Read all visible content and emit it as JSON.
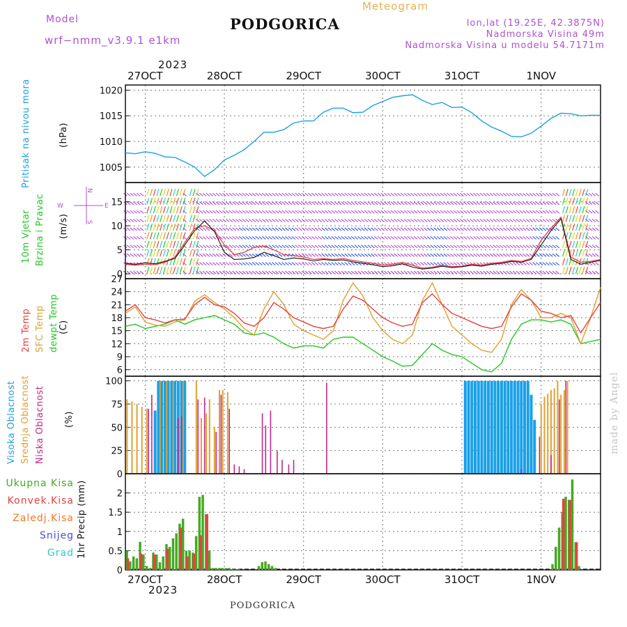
{
  "header": {
    "model_label": "Model",
    "model_name": "wrf−nmm_v3.9.1 e1km",
    "title": "PODGORICA",
    "meteogram_label": "Meteogram",
    "lonlat": "lon,lat (19.25E, 42.3875N)",
    "elevation": "Nadmorska Visina 49m",
    "model_elevation": "Nadmorska Visina u modelu 54.7171m",
    "year": "2023",
    "bottom_title": "PODGORICA",
    "watermark": "made by Angel"
  },
  "colors": {
    "purple": "#b050d0",
    "pressure": "#1aa0e8",
    "temp2m": "#e84040",
    "sfc": "#e0a030",
    "dew": "#22c822",
    "high": "#1aa0e8",
    "mid": "#e0a030",
    "low": "#c0288c",
    "rain": "#44aa22",
    "conv": "#e84040",
    "frz": "#f07828",
    "snow": "#4848e0",
    "hail": "#30c8c8",
    "orange": "#e8b050"
  },
  "chart_data": [
    {
      "type": "line",
      "id": "pressure",
      "ylabel_series": "Pritisak na nivou mora",
      "ylabel_unit": "(hPa)",
      "ylim": [
        1002,
        1021
      ],
      "yticks": [
        "1020",
        "1015",
        "1010",
        "1005"
      ],
      "ytick_values": [
        1020,
        1015,
        1010,
        1005
      ],
      "xticks": [
        "27OCT",
        "28OCT",
        "29OCT",
        "30OCT",
        "31OCT",
        "1NOV"
      ],
      "x_hours": [
        0,
        3,
        6,
        9,
        12,
        15,
        18,
        21,
        24,
        27,
        30,
        33,
        36,
        39,
        42,
        45,
        48,
        51,
        54,
        57,
        60,
        63,
        66,
        69,
        72,
        75,
        78,
        81,
        84,
        87,
        90,
        93,
        96,
        99,
        102,
        105,
        108,
        111,
        114,
        117,
        120,
        123,
        126,
        129,
        132,
        135,
        138,
        141,
        144
      ],
      "series": [
        {
          "values": [
            1007.8,
            1007.6,
            1008.0,
            1007.7,
            1007.0,
            1006.9,
            1006.0,
            1005.0,
            1003.2,
            1004.5,
            1006.4,
            1007.3,
            1008.4,
            1010.0,
            1011.8,
            1011.8,
            1012.3,
            1013.6,
            1014.0,
            1014.0,
            1015.7,
            1016.5,
            1016.5,
            1015.6,
            1015.7,
            1017.0,
            1017.8,
            1018.6,
            1018.9,
            1019.1,
            1018.0,
            1017.2,
            1017.6,
            1016.6,
            1016.7,
            1015.6,
            1014.0,
            1012.8,
            1012.0,
            1011.0,
            1010.9,
            1011.6,
            1013.0,
            1014.5,
            1015.5,
            1015.4,
            1015.0,
            1015.1,
            1015.1
          ]
        }
      ]
    },
    {
      "type": "line",
      "id": "wind",
      "ylabel_series_1": "10m Vjetar",
      "ylabel_series_2": "Brzina i Pravac",
      "ylabel_unit": "(m/s)",
      "compass": [
        "N",
        "W",
        "E",
        "S"
      ],
      "ylim": [
        -1,
        19
      ],
      "yticks": [
        "15",
        "10",
        "5",
        "0"
      ],
      "ytick_values": [
        15,
        10,
        5,
        0
      ],
      "x_hours": [
        0,
        3,
        6,
        9,
        12,
        15,
        18,
        21,
        24,
        27,
        30,
        33,
        36,
        39,
        42,
        45,
        48,
        51,
        54,
        57,
        60,
        63,
        66,
        69,
        72,
        75,
        78,
        81,
        84,
        87,
        90,
        93,
        96,
        99,
        102,
        105,
        108,
        111,
        114,
        117,
        120,
        123,
        126,
        129,
        132,
        135,
        138,
        141,
        144
      ],
      "series": [
        {
          "name": "speed",
          "values": [
            2.2,
            2.0,
            2.3,
            2.1,
            2.6,
            3.2,
            6.0,
            9.0,
            11.0,
            8.8,
            4.5,
            3.0,
            3.1,
            3.4,
            4.5,
            3.8,
            3.0,
            3.3,
            3.1,
            2.7,
            3.0,
            2.8,
            2.9,
            2.5,
            2.2,
            1.9,
            1.5,
            1.7,
            2.1,
            1.4,
            1.0,
            1.2,
            1.6,
            1.3,
            1.5,
            1.8,
            1.6,
            2.0,
            2.2,
            2.6,
            2.4,
            3.0,
            6.0,
            9.0,
            11.5,
            3.0,
            2.0,
            2.4,
            2.8
          ]
        },
        {
          "name": "gust",
          "values": [
            2.0,
            1.8,
            2.0,
            1.9,
            2.4,
            3.5,
            6.5,
            9.5,
            10.0,
            9.0,
            6.0,
            4.0,
            4.5,
            5.5,
            5.8,
            5.0,
            4.0,
            3.8,
            3.5,
            3.0,
            3.2,
            3.0,
            3.2,
            2.8,
            2.5,
            2.2,
            1.8,
            2.0,
            2.4,
            1.8,
            1.2,
            1.4,
            1.8,
            1.5,
            1.6,
            2.0,
            1.8,
            2.2,
            2.4,
            2.8,
            2.6,
            3.2,
            7.0,
            9.5,
            11.8,
            3.5,
            2.4,
            2.6,
            3.0
          ]
        }
      ]
    },
    {
      "type": "line",
      "id": "temperature",
      "ylabel_series_1": "2m Temp",
      "ylabel_series_2": "SFC Temp",
      "ylabel_series_3": "dewpt Temp",
      "ylabel_unit": "(C)",
      "ylim": [
        4.5,
        27
      ],
      "yticks": [
        "27",
        "24",
        "21",
        "18",
        "15",
        "12",
        "9",
        "6"
      ],
      "ytick_values": [
        27,
        24,
        21,
        18,
        15,
        12,
        9,
        6
      ],
      "x_hours": [
        0,
        3,
        6,
        9,
        12,
        15,
        18,
        21,
        24,
        27,
        30,
        33,
        36,
        39,
        42,
        45,
        48,
        51,
        54,
        57,
        60,
        63,
        66,
        69,
        72,
        75,
        78,
        81,
        84,
        87,
        90,
        93,
        96,
        99,
        102,
        105,
        108,
        111,
        114,
        117,
        120,
        123,
        126,
        129,
        132,
        135,
        138,
        141,
        144
      ],
      "series": [
        {
          "name": "2m Temp",
          "values": [
            19.5,
            21.0,
            18.0,
            17.5,
            16.8,
            17.5,
            17.7,
            21.0,
            22.7,
            21.0,
            20.5,
            19.0,
            16.8,
            16.0,
            18.0,
            21.5,
            20.0,
            18.0,
            17.0,
            16.0,
            15.5,
            16.0,
            20.0,
            23.0,
            22.0,
            20.0,
            18.0,
            16.8,
            16.0,
            16.5,
            21.5,
            23.5,
            21.0,
            19.0,
            18.0,
            17.0,
            16.0,
            15.5,
            16.0,
            20.5,
            23.5,
            22.0,
            19.5,
            19.0,
            18.0,
            18.5,
            14.5,
            18.0,
            21.5
          ]
        },
        {
          "name": "SFC Temp",
          "values": [
            19.0,
            20.5,
            17.0,
            16.3,
            16.0,
            17.0,
            17.5,
            21.8,
            23.3,
            21.5,
            20.0,
            18.0,
            15.5,
            14.0,
            20.0,
            24.0,
            21.0,
            16.5,
            15.0,
            14.0,
            13.0,
            15.0,
            22.0,
            26.0,
            23.0,
            18.0,
            15.0,
            13.0,
            12.0,
            14.0,
            22.0,
            26.0,
            21.0,
            16.0,
            14.0,
            12.0,
            10.5,
            10.0,
            13.0,
            21.0,
            24.5,
            22.0,
            18.0,
            18.0,
            19.0,
            18.0,
            12.0,
            18.0,
            25.0
          ]
        },
        {
          "name": "dewpt Temp",
          "values": [
            16.0,
            16.5,
            15.5,
            16.0,
            16.5,
            17.5,
            16.5,
            17.5,
            18.0,
            18.5,
            17.5,
            16.5,
            14.5,
            14.0,
            14.5,
            13.5,
            12.0,
            11.0,
            11.5,
            11.5,
            11.0,
            13.0,
            13.5,
            13.5,
            12.0,
            10.5,
            9.0,
            8.0,
            6.8,
            7.0,
            9.5,
            12.0,
            10.5,
            9.5,
            9.0,
            7.5,
            6.0,
            5.5,
            7.5,
            13.0,
            16.5,
            17.5,
            17.5,
            17.0,
            17.5,
            16.5,
            12.0,
            12.5,
            13.0
          ]
        }
      ]
    },
    {
      "type": "bar",
      "id": "clouds",
      "ylabel_series_1": "Visoka Oblacnost",
      "ylabel_series_2": "Srednja Oblacnost",
      "ylabel_series_3": "Niska Oblacnost",
      "ylabel_unit": "(%)",
      "ylim": [
        0,
        105
      ],
      "yticks": [
        "100",
        "75",
        "50",
        "25",
        "0"
      ],
      "ytick_values": [
        100,
        75,
        50,
        25,
        0
      ],
      "series": [
        {
          "name": "Visoka",
          "x_hours": [
            9.0,
            10.0,
            11.0,
            12.0,
            13.0,
            14.0,
            15.0,
            16.0,
            17.0,
            18.0,
            103.0,
            104.0,
            105.0,
            106.0,
            107.0,
            108.0,
            109.0,
            110.0,
            111.0,
            112.0,
            113.0,
            114.0,
            115.0,
            116.0,
            117.0,
            118.0,
            119.0,
            120.0,
            121.0,
            122.0,
            123.0,
            124.0
          ],
          "values": [
            68,
            100,
            100,
            100,
            100,
            100,
            100,
            100,
            100,
            100,
            100,
            100,
            100,
            100,
            100,
            100,
            100,
            100,
            100,
            100,
            100,
            100,
            100,
            100,
            100,
            100,
            100,
            100,
            100,
            100,
            85,
            58
          ]
        },
        {
          "name": "Srednja",
          "x_hours": [
            0.5,
            2.0,
            3.5,
            5.0,
            6.5,
            10.5,
            12.5,
            14.5,
            17.5,
            21.5,
            23.0,
            24.5,
            25.5,
            27.0,
            28.5,
            29.5,
            31.0,
            126.0,
            127.0,
            128.0,
            129.0,
            130.0,
            131.0,
            132.0,
            133.0,
            134.0
          ],
          "values": [
            80,
            78,
            75,
            72,
            70,
            100,
            100,
            100,
            100,
            100,
            60,
            65,
            80,
            50,
            90,
            90,
            88,
            75,
            83,
            86,
            90,
            92,
            100,
            85,
            90,
            100
          ]
        },
        {
          "name": "Niska",
          "x_hours": [
            7.0,
            8.0,
            16.0,
            17.0,
            22.0,
            24.0,
            27.5,
            29.0,
            31.5,
            33.0,
            34.5,
            36.0,
            41.5,
            42.5,
            44.0,
            46.0,
            47.5,
            49.5,
            51.0,
            61.0,
            120.0,
            125.5,
            129.0,
            131.5,
            133.5
          ],
          "values": [
            70,
            85,
            60,
            62,
            80,
            82,
            45,
            85,
            70,
            10,
            8,
            5,
            65,
            52,
            68,
            25,
            15,
            10,
            15,
            98,
            5,
            40,
            20,
            80,
            100
          ]
        }
      ]
    },
    {
      "type": "bar",
      "id": "precip",
      "legend": [
        "Ukupna Kisa",
        "Konvek.Kisa",
        "Zaledj.Kisa",
        "Snijeg",
        "Grad"
      ],
      "ylabel_unit": "1hr Precip (mm)",
      "ylim": [
        0,
        2.5
      ],
      "yticks": [
        "2",
        "1.5",
        "1",
        "0.5",
        "0"
      ],
      "ytick_values": [
        2,
        1.5,
        1,
        0.5,
        0
      ],
      "xticks": [
        "27OCT",
        "28OCT",
        "29OCT",
        "30OCT",
        "31OCT",
        "1NOV"
      ],
      "year": "2023",
      "series": [
        {
          "name": "Ukupna Kisa",
          "x_hours": [
            0.5,
            1.5,
            2.5,
            3.5,
            4.5,
            5.5,
            6.5,
            7.5,
            8.5,
            9.5,
            10.5,
            11.5,
            12.5,
            13.5,
            14.5,
            15.5,
            16.5,
            17.5,
            18.5,
            19.5,
            20.5,
            21.5,
            22.5,
            23.5,
            24.5,
            25.5,
            26.5,
            27.5,
            28.5,
            29.5,
            30.5,
            31.5,
            32.5,
            33.5,
            34.5,
            40.5,
            41.5,
            42.5,
            43.5,
            44.5,
            45.5,
            129.5,
            130.5,
            131.5,
            132.5,
            133.5,
            134.5,
            135.5,
            136.5,
            137.5
          ],
          "values": [
            0.5,
            0.22,
            0.35,
            0.3,
            0.73,
            0.4,
            0.1,
            0.05,
            0.45,
            0.4,
            0.2,
            0.35,
            0.67,
            0.6,
            0.82,
            0.95,
            1.2,
            1.33,
            0.5,
            0.5,
            0.45,
            0.88,
            1.9,
            1.95,
            1.45,
            0.5,
            0.05,
            0.05,
            0.05,
            0.05,
            0.05,
            0.05,
            0.02,
            0.02,
            0.02,
            0.1,
            0.2,
            0.22,
            0.15,
            0.1,
            0.05,
            0.15,
            0.6,
            1.1,
            1.5,
            1.9,
            1.82,
            2.35,
            0.72,
            0.1
          ]
        },
        {
          "name": "Konvek.Kisa",
          "x_hours": [
            0.8,
            4.8,
            8.8,
            12.8,
            16.8,
            18.8,
            20.8,
            22.8,
            24.8,
            132.8,
            134.8,
            136.8
          ],
          "values": [
            0.3,
            0.42,
            0.4,
            0.55,
            1.1,
            0.35,
            0.42,
            0.9,
            1.45,
            1.85,
            1.82,
            0.72
          ]
        }
      ]
    }
  ]
}
